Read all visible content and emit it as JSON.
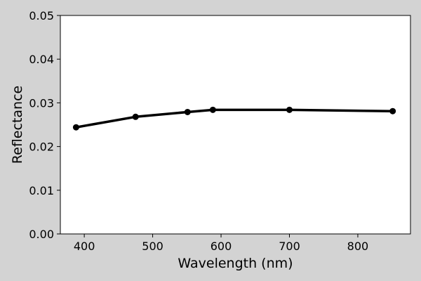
{
  "chart_data": {
    "type": "line",
    "title": "",
    "xlabel": "Wavelength (nm)",
    "ylabel": "Reflectance",
    "xlim": [
      365,
      877
    ],
    "ylim": [
      0.0,
      0.05
    ],
    "x_ticks": [
      400,
      500,
      600,
      700,
      800
    ],
    "x_tick_labels": [
      "400",
      "500",
      "600",
      "700",
      "800"
    ],
    "y_ticks": [
      0.0,
      0.01,
      0.02,
      0.03,
      0.04,
      0.05
    ],
    "y_tick_labels": [
      "0.00",
      "0.01",
      "0.02",
      "0.03",
      "0.04",
      "0.05"
    ],
    "grid": false,
    "legend": "none",
    "series": [
      {
        "x": [
          388,
          475,
          551,
          588,
          700,
          851
        ],
        "y": [
          0.0244,
          0.0268,
          0.0279,
          0.0284,
          0.0284,
          0.0281
        ],
        "color": "#000000",
        "marker": "circle"
      }
    ],
    "background": "#ffffff",
    "figure_background": "#d3d3d3"
  }
}
